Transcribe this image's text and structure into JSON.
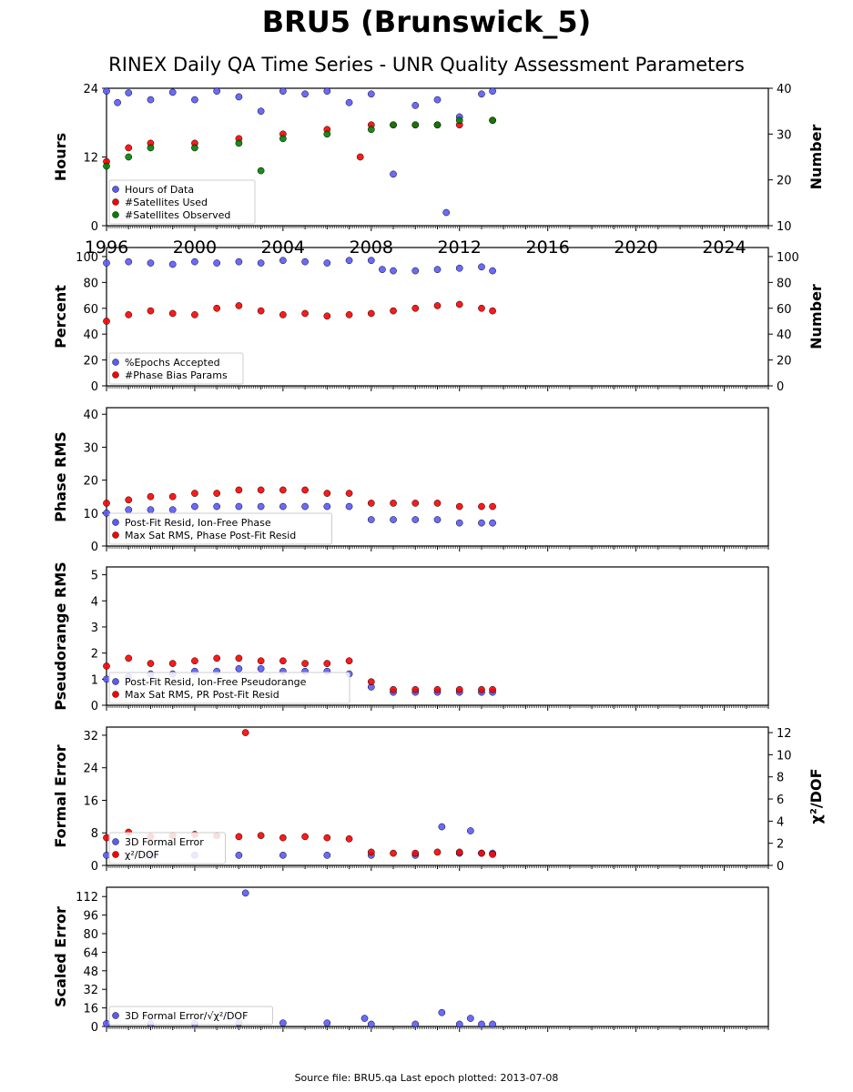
{
  "figure": {
    "title": "BRU5 (Brunswick_5)",
    "subtitle": "RINEX Daily QA Time Series - UNR Quality Assessment Parameters",
    "footer": "Source file: BRU5.qa Last epoch plotted: 2013-07-08",
    "colors": {
      "blue": "#5a5aff",
      "red": "#ff0000",
      "green": "#008000"
    }
  },
  "chart_data": [
    {
      "type": "scatter",
      "xlim": [
        1996,
        2026
      ],
      "x_ticks": [
        "1996",
        "2000",
        "2004",
        "2008",
        "2012",
        "2016",
        "2020",
        "2024"
      ],
      "ylabel": "Hours",
      "ylim": [
        0,
        24
      ],
      "y_ticks": [
        "0",
        "12",
        "24"
      ],
      "y2label": "Number",
      "y2lim": [
        10,
        40
      ],
      "y2_ticks": [
        "10",
        "20",
        "30",
        "40"
      ],
      "legend_placement": "lower-left",
      "series": [
        {
          "name": "Hours of Data",
          "color": "#5a5aff",
          "axis": "left",
          "x": [
            1996.0,
            1996.5,
            1997.0,
            1998.0,
            1999.0,
            2000.0,
            2001.0,
            2002.0,
            2003.0,
            2004.0,
            2005.0,
            2006.0,
            2007.0,
            2008.0,
            2009.0,
            2010.0,
            2011.0,
            2011.4,
            2012.0,
            2013.0,
            2013.5
          ],
          "y": [
            23.5,
            21.5,
            23.2,
            22.0,
            23.3,
            22.0,
            23.5,
            22.5,
            20.0,
            23.5,
            23.0,
            23.5,
            21.5,
            23.0,
            9.0,
            21.0,
            22.0,
            2.3,
            19.0,
            23.0,
            23.5
          ]
        },
        {
          "name": "#Satellites Used",
          "color": "#ff0000",
          "axis": "right",
          "x": [
            1996.0,
            1997.0,
            1998.0,
            2000.0,
            2002.0,
            2004.0,
            2006.0,
            2007.5,
            2008.0,
            2009.0,
            2010.0,
            2011.0,
            2012.0,
            2013.5
          ],
          "y": [
            24,
            27,
            28,
            28,
            29,
            30,
            31,
            25,
            32,
            32,
            32,
            32,
            32,
            33
          ]
        },
        {
          "name": "#Satellites Observed",
          "color": "#008000",
          "axis": "right",
          "x": [
            1996.0,
            1997.0,
            1998.0,
            2000.0,
            2002.0,
            2003.0,
            2004.0,
            2006.0,
            2008.0,
            2009.0,
            2010.0,
            2011.0,
            2012.0,
            2013.5
          ],
          "y": [
            23,
            25,
            27,
            27,
            28,
            22,
            29,
            30,
            31,
            32,
            32,
            32,
            33,
            33
          ]
        }
      ]
    },
    {
      "type": "scatter",
      "xlim": [
        1996,
        2026
      ],
      "ylabel": "Percent",
      "ylim": [
        0,
        107
      ],
      "y_ticks": [
        "0",
        "20",
        "40",
        "60",
        "80",
        "100"
      ],
      "y2label": "Number",
      "y2lim": [
        0,
        107
      ],
      "y2_ticks": [
        "0",
        "20",
        "40",
        "60",
        "80",
        "100"
      ],
      "legend_placement": "lower-left",
      "series": [
        {
          "name": "%Epochs Accepted",
          "color": "#5a5aff",
          "x": [
            1996.0,
            1997.0,
            1998.0,
            1999.0,
            2000.0,
            2001.0,
            2002.0,
            2003.0,
            2004.0,
            2005.0,
            2006.0,
            2007.0,
            2008.0,
            2008.5,
            2009.0,
            2010.0,
            2011.0,
            2012.0,
            2013.0,
            2013.5
          ],
          "y": [
            95,
            96,
            95,
            94,
            96,
            95,
            96,
            95,
            97,
            96,
            95,
            97,
            97,
            90,
            89,
            89,
            90,
            91,
            92,
            89
          ]
        },
        {
          "name": "#Phase Bias Params",
          "color": "#ff0000",
          "x": [
            1996.0,
            1997.0,
            1998.0,
            1999.0,
            2000.0,
            2001.0,
            2002.0,
            2003.0,
            2004.0,
            2005.0,
            2006.0,
            2007.0,
            2008.0,
            2009.0,
            2010.0,
            2011.0,
            2012.0,
            2013.0,
            2013.5
          ],
          "y": [
            50,
            55,
            58,
            56,
            55,
            60,
            62,
            58,
            55,
            56,
            54,
            55,
            56,
            58,
            60,
            62,
            63,
            60,
            58
          ]
        }
      ]
    },
    {
      "type": "scatter",
      "xlim": [
        1996,
        2026
      ],
      "ylabel": "Phase RMS",
      "ylim": [
        0,
        42
      ],
      "y_ticks": [
        "0",
        "10",
        "20",
        "30",
        "40"
      ],
      "legend_placement": "lower-left",
      "series": [
        {
          "name": "Post-Fit Resid, Ion-Free Phase",
          "color": "#5a5aff",
          "x": [
            1996.0,
            1997.0,
            1998.0,
            1999.0,
            2000.0,
            2001.0,
            2002.0,
            2003.0,
            2004.0,
            2005.0,
            2006.0,
            2007.0,
            2008.0,
            2009.0,
            2010.0,
            2011.0,
            2012.0,
            2013.0,
            2013.5
          ],
          "y": [
            10,
            11,
            11,
            11,
            12,
            12,
            12,
            12,
            12,
            12,
            12,
            12,
            8,
            8,
            8,
            8,
            7,
            7,
            7
          ]
        },
        {
          "name": "Max Sat RMS, Phase Post-Fit Resid",
          "color": "#ff0000",
          "x": [
            1996.0,
            1997.0,
            1998.0,
            1999.0,
            2000.0,
            2001.0,
            2002.0,
            2003.0,
            2004.0,
            2005.0,
            2006.0,
            2007.0,
            2008.0,
            2009.0,
            2010.0,
            2011.0,
            2012.0,
            2013.0,
            2013.5
          ],
          "y": [
            13,
            14,
            15,
            15,
            16,
            16,
            17,
            17,
            17,
            17,
            16,
            16,
            13,
            13,
            13,
            13,
            12,
            12,
            12
          ]
        }
      ]
    },
    {
      "type": "scatter",
      "xlim": [
        1996,
        2026
      ],
      "ylabel": "Pseudorange RMS",
      "ylim": [
        0,
        5.3
      ],
      "y_ticks": [
        "0",
        "1",
        "2",
        "3",
        "4",
        "5"
      ],
      "legend_placement": "lower-left",
      "series": [
        {
          "name": "Post-Fit Resid, Ion-Free Pseudorange",
          "color": "#5a5aff",
          "x": [
            1996.0,
            1997.0,
            1998.0,
            1999.0,
            2000.0,
            2001.0,
            2002.0,
            2003.0,
            2004.0,
            2005.0,
            2006.0,
            2007.0,
            2008.0,
            2009.0,
            2010.0,
            2011.0,
            2012.0,
            2013.0,
            2013.5
          ],
          "y": [
            1.0,
            1.1,
            1.2,
            1.2,
            1.3,
            1.3,
            1.4,
            1.4,
            1.3,
            1.3,
            1.3,
            1.2,
            0.7,
            0.5,
            0.5,
            0.5,
            0.5,
            0.5,
            0.5
          ]
        },
        {
          "name": "Max Sat RMS, PR Post-Fit Resid",
          "color": "#ff0000",
          "x": [
            1996.0,
            1997.0,
            1998.0,
            1999.0,
            2000.0,
            2001.0,
            2002.0,
            2003.0,
            2004.0,
            2005.0,
            2006.0,
            2007.0,
            2008.0,
            2009.0,
            2010.0,
            2011.0,
            2012.0,
            2013.0,
            2013.5
          ],
          "y": [
            1.5,
            1.8,
            1.6,
            1.6,
            1.7,
            1.8,
            1.8,
            1.7,
            1.7,
            1.6,
            1.6,
            1.7,
            0.9,
            0.6,
            0.6,
            0.6,
            0.6,
            0.6,
            0.6
          ]
        }
      ]
    },
    {
      "type": "scatter",
      "xlim": [
        1996,
        2026
      ],
      "ylabel": "Formal Error",
      "ylim": [
        0,
        34
      ],
      "y_ticks": [
        "0",
        "8",
        "16",
        "24",
        "32"
      ],
      "y2label": "χ²/DOF",
      "y2lim": [
        0,
        12.5
      ],
      "y2_ticks": [
        "0",
        "2",
        "4",
        "6",
        "8",
        "10",
        "12"
      ],
      "legend_placement": "lower-left",
      "series": [
        {
          "name": "3D Formal Error",
          "color": "#5a5aff",
          "axis": "left",
          "x": [
            1996.0,
            1998.0,
            2000.0,
            2002.0,
            2004.0,
            2006.0,
            2008.0,
            2010.0,
            2011.2,
            2012.0,
            2012.5,
            2013.0,
            2013.5
          ],
          "y": [
            2.5,
            2.5,
            2.5,
            2.5,
            2.5,
            2.5,
            2.5,
            2.5,
            9.5,
            3.0,
            8.5,
            3.0,
            3.0
          ]
        },
        {
          "name": "χ²/DOF",
          "color": "#ff0000",
          "axis": "right",
          "x": [
            1996.0,
            1997.0,
            1998.0,
            1999.0,
            2000.0,
            2001.0,
            2002.0,
            2002.3,
            2003.0,
            2004.0,
            2005.0,
            2006.0,
            2007.0,
            2008.0,
            2009.0,
            2010.0,
            2011.0,
            2012.0,
            2013.0,
            2013.5
          ],
          "y": [
            2.5,
            3.0,
            2.6,
            2.7,
            2.8,
            2.7,
            2.6,
            12.0,
            2.7,
            2.5,
            2.6,
            2.5,
            2.4,
            1.2,
            1.1,
            1.1,
            1.2,
            1.2,
            1.1,
            1.0
          ]
        }
      ]
    },
    {
      "type": "scatter",
      "xlim": [
        1996,
        2026
      ],
      "ylabel": "Scaled Error",
      "ylim": [
        0,
        120
      ],
      "y_ticks": [
        "0",
        "16",
        "32",
        "48",
        "64",
        "80",
        "96",
        "112"
      ],
      "legend_placement": "lower-left",
      "series": [
        {
          "name": "3D Formal Error/√χ²/DOF",
          "color": "#5a5aff",
          "x": [
            1996.0,
            1998.0,
            2000.0,
            2002.0,
            2002.3,
            2004.0,
            2006.0,
            2007.7,
            2008.0,
            2010.0,
            2011.2,
            2012.0,
            2012.5,
            2013.0,
            2013.5
          ],
          "y": [
            2.5,
            2.5,
            2.5,
            3.0,
            115.0,
            3.0,
            3.0,
            7.0,
            2.0,
            2.0,
            12.0,
            2.0,
            7.0,
            2.0,
            2.0
          ]
        }
      ]
    }
  ]
}
